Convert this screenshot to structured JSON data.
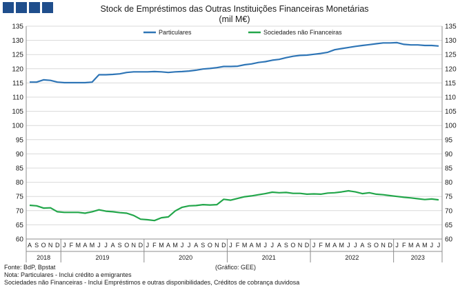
{
  "header": {
    "title": "Stock de Empréstimos das Outras Instituições Financeiras Monetárias",
    "subtitle": "(mil M€)"
  },
  "footer": {
    "source": "Fonte: BdP, Bpstat",
    "note1": "Nota: Particulares - Inclui crédito a emigrantes",
    "note2": "Sociedades não Financeiras - Inclui Empréstimos e outras disponibilidades,  Créditos de cobrança duvidosa",
    "credit": "(Gráfico: GEE)"
  },
  "chart_data": {
    "type": "line",
    "title": "Stock de Empréstimos das Outras Instituições Financeiras Monetárias",
    "subtitle": "(mil M€)",
    "ylim": [
      60,
      135
    ],
    "yticks": [
      60,
      65,
      70,
      75,
      80,
      85,
      90,
      95,
      100,
      105,
      110,
      115,
      120,
      125,
      130,
      135
    ],
    "grid": true,
    "legend_position": "top-center",
    "x": [
      "2018-08",
      "2018-09",
      "2018-10",
      "2018-11",
      "2018-12",
      "2019-01",
      "2019-02",
      "2019-03",
      "2019-04",
      "2019-05",
      "2019-06",
      "2019-07",
      "2019-08",
      "2019-09",
      "2019-10",
      "2019-11",
      "2019-12",
      "2020-01",
      "2020-02",
      "2020-03",
      "2020-04",
      "2020-05",
      "2020-06",
      "2020-07",
      "2020-08",
      "2020-09",
      "2020-10",
      "2020-11",
      "2020-12",
      "2021-01",
      "2021-02",
      "2021-03",
      "2021-04",
      "2021-05",
      "2021-06",
      "2021-07",
      "2021-08",
      "2021-09",
      "2021-10",
      "2021-11",
      "2021-12",
      "2022-01",
      "2022-02",
      "2022-03",
      "2022-04",
      "2022-05",
      "2022-06",
      "2022-07",
      "2022-08",
      "2022-09",
      "2022-10",
      "2022-11",
      "2022-12",
      "2023-01",
      "2023-02",
      "2023-03",
      "2023-04",
      "2023-05",
      "2023-06",
      "2023-07"
    ],
    "month_labels": [
      "A",
      "S",
      "O",
      "N",
      "D",
      "J",
      "F",
      "M",
      "A",
      "M",
      "J",
      "J",
      "A",
      "S",
      "O",
      "N",
      "D",
      "J",
      "F",
      "M",
      "A",
      "M",
      "J",
      "J",
      "A",
      "S",
      "O",
      "N",
      "D",
      "J",
      "F",
      "M",
      "A",
      "M",
      "J",
      "J",
      "A",
      "S",
      "O",
      "N",
      "D",
      "J",
      "F",
      "M",
      "A",
      "M",
      "J",
      "J",
      "A",
      "S",
      "O",
      "N",
      "D",
      "J",
      "F",
      "M",
      "A",
      "M",
      "J",
      "J"
    ],
    "year_labels": [
      {
        "label": "2018",
        "start": 0,
        "end": 4
      },
      {
        "label": "2019",
        "start": 5,
        "end": 16
      },
      {
        "label": "2020",
        "start": 17,
        "end": 28
      },
      {
        "label": "2021",
        "start": 29,
        "end": 40
      },
      {
        "label": "2022",
        "start": 41,
        "end": 52
      },
      {
        "label": "2023",
        "start": 53,
        "end": 59
      }
    ],
    "series": [
      {
        "name": "Particulares",
        "color": "#2e75b6",
        "values": [
          115.3,
          115.3,
          116.1,
          115.9,
          115.3,
          115.1,
          115.1,
          115.1,
          115.1,
          115.3,
          117.9,
          117.9,
          118.0,
          118.2,
          118.7,
          118.9,
          118.9,
          118.9,
          119.0,
          118.9,
          118.7,
          118.9,
          119.0,
          119.2,
          119.5,
          119.9,
          120.1,
          120.4,
          120.8,
          120.8,
          120.9,
          121.4,
          121.7,
          122.2,
          122.5,
          123.0,
          123.3,
          123.9,
          124.4,
          124.7,
          124.8,
          125.1,
          125.4,
          125.8,
          126.7,
          127.1,
          127.5,
          127.9,
          128.2,
          128.5,
          128.8,
          129.1,
          129.1,
          129.2,
          128.6,
          128.4,
          128.4,
          128.2,
          128.2,
          128.0
        ]
      },
      {
        "name": "Sociedades não Financeiras",
        "color": "#22a64a",
        "values": [
          71.9,
          71.7,
          70.9,
          71.0,
          69.6,
          69.4,
          69.4,
          69.4,
          69.1,
          69.6,
          70.3,
          69.8,
          69.6,
          69.3,
          69.1,
          68.3,
          67.0,
          66.8,
          66.5,
          67.5,
          67.8,
          69.9,
          71.2,
          71.7,
          71.8,
          72.1,
          72.0,
          72.1,
          74.0,
          73.7,
          74.3,
          74.9,
          75.2,
          75.6,
          76.0,
          76.5,
          76.3,
          76.4,
          76.1,
          76.1,
          75.8,
          75.9,
          75.8,
          76.2,
          76.3,
          76.6,
          77.0,
          76.6,
          76.0,
          76.3,
          75.8,
          75.6,
          75.3,
          75.0,
          74.7,
          74.5,
          74.2,
          73.9,
          74.1,
          73.8
        ]
      }
    ]
  }
}
